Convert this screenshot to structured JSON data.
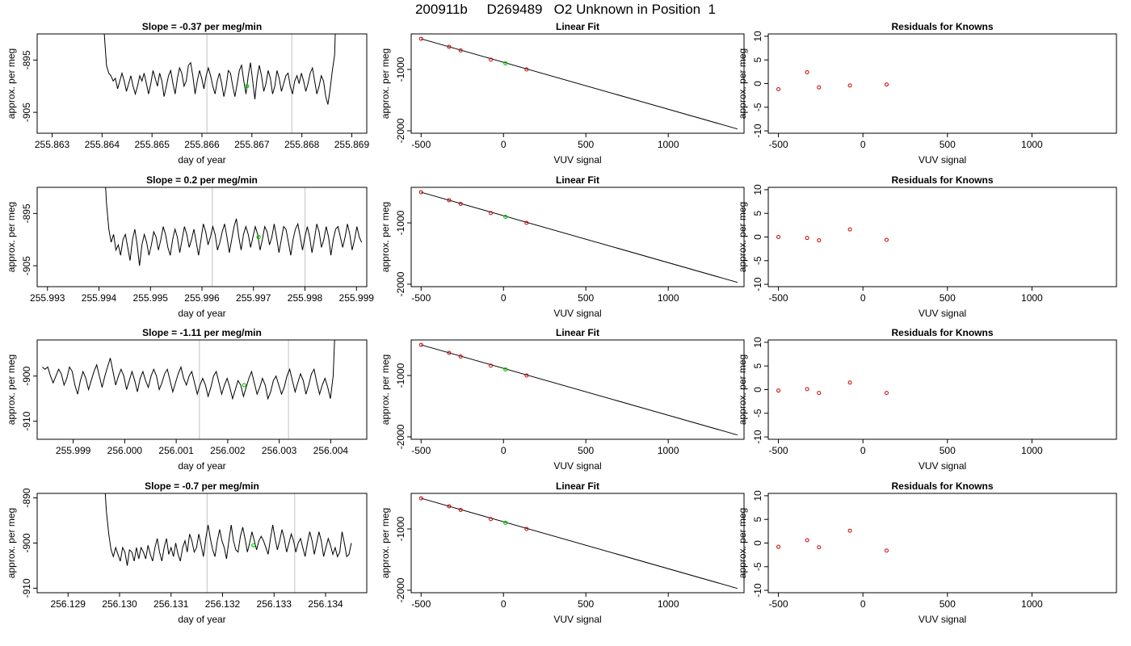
{
  "page": {
    "title": "200911b     D269489   O2 Unknown in Position  1"
  },
  "colors": {
    "line": "#000000",
    "vline": "#cccccc",
    "known_point": "#cc0000",
    "unknown_point": "#00cc00"
  },
  "chart_data": [
    {
      "type": "line",
      "panel": "time-series",
      "title": "Slope =  -0.37  per meg/min",
      "xlabel": "day of year",
      "ylabel": "approx. per meg",
      "xlim": [
        255.8627,
        255.8693
      ],
      "ylim": [
        -909,
        -890
      ],
      "xticks": [
        255.863,
        255.864,
        255.865,
        255.866,
        255.867,
        255.868,
        255.869
      ],
      "xtick_labels": [
        "255.863",
        "255.864",
        "255.865",
        "255.866",
        "255.867",
        "255.868",
        "255.869"
      ],
      "yticks": [
        -895,
        -905
      ],
      "ytick_labels": [
        "-895",
        "-905"
      ],
      "vlines": [
        255.8661,
        255.8678
      ],
      "x_start": 255.864,
      "x_end": 255.8687,
      "series_values": [
        -880,
        -890,
        -896,
        -897.5,
        -898,
        -899,
        -898.5,
        -900.5,
        -899,
        -897.5,
        -899,
        -901,
        -899.5,
        -898,
        -900,
        -901.5,
        -900,
        -898,
        -899,
        -897.5,
        -899.5,
        -901.5,
        -899.5,
        -897,
        -898.5,
        -900,
        -897.5,
        -899,
        -902,
        -900,
        -898,
        -897,
        -899.5,
        -901.5,
        -898.5,
        -896.5,
        -897.5,
        -900,
        -899,
        -896,
        -895.5,
        -898,
        -901.5,
        -899,
        -897,
        -898.5,
        -900.5,
        -898,
        -896.5,
        -898,
        -900,
        -901.5,
        -899,
        -897.5,
        -899.5,
        -902,
        -900,
        -897,
        -897.5,
        -900,
        -902,
        -899.5,
        -897,
        -896,
        -899,
        -901.5,
        -898,
        -895.5,
        -899,
        -902.5,
        -898.5,
        -896,
        -898,
        -901,
        -899.5,
        -897,
        -898.5,
        -901.5,
        -900,
        -897,
        -898.5,
        -901,
        -899.5,
        -898,
        -897.5,
        -900,
        -901.5,
        -899,
        -898,
        -899.5,
        -897.5,
        -899,
        -901,
        -899.5,
        -897.5,
        -896.5,
        -899,
        -901.5,
        -900,
        -898,
        -899,
        -902,
        -903.5,
        -900.5,
        -897,
        -894,
        -880
      ],
      "unknown_marker": {
        "x": 255.8669,
        "y": -900
      }
    },
    {
      "type": "scatter",
      "panel": "linear-fit",
      "title": "Linear Fit",
      "xlabel": "VUV signal",
      "ylabel": "approx. per meg",
      "xlim": [
        -560,
        1460
      ],
      "ylim": [
        -2040,
        -420
      ],
      "xticks": [
        -500,
        0,
        500,
        1000
      ],
      "xtick_labels": [
        "-500",
        "0",
        "500",
        "1000"
      ],
      "yticks": [
        -1000,
        -2000
      ],
      "ytick_labels": [
        "-1000",
        "-2000"
      ],
      "knowns": {
        "x": [
          -500,
          -330,
          -260,
          -77,
          140
        ],
        "y": [
          -500,
          -630,
          -690,
          -840,
          -1000
        ]
      },
      "unknown": {
        "x": 12,
        "y": -900
      },
      "fit_line": {
        "x": [
          -500,
          1420
        ],
        "y": [
          -500,
          -1970
        ]
      }
    },
    {
      "type": "scatter",
      "panel": "residuals",
      "title": "Residuals for Knowns",
      "xlabel": "VUV signal",
      "ylabel": "approx. per meg",
      "xlim": [
        -560,
        1500
      ],
      "ylim": [
        -10.5,
        10.5
      ],
      "xticks": [
        -500,
        0,
        500,
        1000
      ],
      "xtick_labels": [
        "-500",
        "0",
        "500",
        "1000"
      ],
      "yticks": [
        10,
        5,
        0,
        -5,
        -10
      ],
      "ytick_labels": [
        "10",
        "5",
        "0",
        "-5",
        "-10"
      ],
      "knowns": {
        "x": [
          -500,
          -330,
          -260,
          -77,
          140
        ],
        "y": [
          -1.2,
          2.4,
          -0.8,
          -0.4,
          -0.2
        ]
      }
    },
    {
      "type": "line",
      "panel": "time-series",
      "title": "Slope =  0.2  per meg/min",
      "xlabel": "day of year",
      "ylabel": "approx. per meg",
      "xlim": [
        255.9928,
        255.9992
      ],
      "ylim": [
        -909,
        -890
      ],
      "xticks": [
        255.993,
        255.994,
        255.995,
        255.996,
        255.997,
        255.998,
        255.999
      ],
      "xtick_labels": [
        "255.993",
        "255.994",
        "255.995",
        "255.996",
        "255.997",
        "255.998",
        "255.999"
      ],
      "yticks": [
        -895,
        -905
      ],
      "ytick_labels": [
        "-895",
        "-905"
      ],
      "vlines": [
        255.9962,
        255.998
      ],
      "x_start": 255.9941,
      "x_end": 255.9991,
      "series_values": [
        -885,
        -893,
        -898,
        -900.5,
        -899,
        -902,
        -901,
        -903,
        -900,
        -899,
        -901.5,
        -904,
        -900,
        -898,
        -901,
        -905,
        -901,
        -899,
        -900.5,
        -903,
        -901,
        -898.5,
        -899.5,
        -902,
        -900,
        -897.5,
        -899,
        -901.5,
        -903,
        -900,
        -898,
        -899.5,
        -902.5,
        -900,
        -897.5,
        -899,
        -901.5,
        -900,
        -898,
        -900.5,
        -903,
        -900,
        -897,
        -898.5,
        -901,
        -899.5,
        -897.5,
        -899,
        -902,
        -900.5,
        -898.5,
        -897,
        -899.5,
        -902.5,
        -900,
        -897.5,
        -896,
        -899.5,
        -902,
        -899,
        -897.5,
        -899,
        -901.5,
        -899.5,
        -897.5,
        -899,
        -902,
        -900,
        -897.5,
        -898.5,
        -901,
        -899.5,
        -897,
        -899.5,
        -902.5,
        -900,
        -897.5,
        -898,
        -900.5,
        -903,
        -900,
        -898,
        -897,
        -899.5,
        -902,
        -899.5,
        -897.5,
        -899.5,
        -902.5,
        -900,
        -897,
        -898.5,
        -901.5,
        -900,
        -897.5,
        -899.5,
        -903,
        -900,
        -898,
        -897.5,
        -899.5,
        -901.5,
        -899.5,
        -897,
        -899,
        -902,
        -900,
        -897.5,
        -899.5,
        -900.5
      ],
      "unknown_marker": {
        "x": 255.9971,
        "y": -899.5
      }
    },
    {
      "type": "scatter",
      "panel": "linear-fit",
      "title": "Linear Fit",
      "xlabel": "VUV signal",
      "ylabel": "approx. per meg",
      "xlim": [
        -560,
        1460
      ],
      "ylim": [
        -2040,
        -420
      ],
      "xticks": [
        -500,
        0,
        500,
        1000
      ],
      "xtick_labels": [
        "-500",
        "0",
        "500",
        "1000"
      ],
      "yticks": [
        -1000,
        -2000
      ],
      "ytick_labels": [
        "-1000",
        "-2000"
      ],
      "knowns": {
        "x": [
          -500,
          -330,
          -260,
          -77,
          140
        ],
        "y": [
          -500,
          -630,
          -690,
          -840,
          -1000
        ]
      },
      "unknown": {
        "x": 12,
        "y": -900
      },
      "fit_line": {
        "x": [
          -500,
          1420
        ],
        "y": [
          -500,
          -1970
        ]
      }
    },
    {
      "type": "scatter",
      "panel": "residuals",
      "title": "Residuals for Knowns",
      "xlabel": "VUV signal",
      "ylabel": "approx. per meg",
      "xlim": [
        -560,
        1500
      ],
      "ylim": [
        -10.5,
        10.5
      ],
      "xticks": [
        -500,
        0,
        500,
        1000
      ],
      "xtick_labels": [
        "-500",
        "0",
        "500",
        "1000"
      ],
      "yticks": [
        10,
        5,
        0,
        -5,
        -10
      ],
      "ytick_labels": [
        "10",
        "5",
        "0",
        "-5",
        "-10"
      ],
      "knowns": {
        "x": [
          -500,
          -330,
          -260,
          -77,
          140
        ],
        "y": [
          0,
          -0.2,
          -0.7,
          1.6,
          -0.6
        ]
      }
    },
    {
      "type": "line",
      "panel": "time-series",
      "title": "Slope =  -1.11  per meg/min",
      "xlabel": "day of year",
      "ylabel": "approx. per meg",
      "xlim": [
        255.9983,
        256.0047
      ],
      "ylim": [
        -914,
        -892
      ],
      "xticks": [
        255.999,
        256.0,
        256.001,
        256.002,
        256.003,
        256.004
      ],
      "xtick_labels": [
        "255.999",
        "256.000",
        "256.001",
        "256.002",
        "256.003",
        "256.004"
      ],
      "yticks": [
        -900,
        -910
      ],
      "ytick_labels": [
        "-900",
        "-910"
      ],
      "vlines": [
        256.00145,
        256.00318
      ],
      "x_start": 255.9984,
      "x_end": 256.0041,
      "series_values": [
        -898,
        -898.5,
        -898,
        -900,
        -901.5,
        -900,
        -898.5,
        -899.5,
        -902,
        -900.5,
        -898,
        -899,
        -902,
        -904,
        -901,
        -899,
        -900.5,
        -903,
        -901,
        -899,
        -897.5,
        -900,
        -902.5,
        -900,
        -898,
        -896,
        -899,
        -902,
        -900,
        -898.5,
        -900,
        -903,
        -901,
        -899,
        -901,
        -903.5,
        -900.5,
        -899,
        -901,
        -902.5,
        -900,
        -898.5,
        -900,
        -903,
        -901.5,
        -899.5,
        -898.5,
        -901,
        -903.5,
        -901.5,
        -899.5,
        -898,
        -900.5,
        -902,
        -900,
        -899,
        -901.5,
        -904,
        -902,
        -900.5,
        -902,
        -904.5,
        -902.5,
        -900,
        -899,
        -901.5,
        -904,
        -902,
        -900.5,
        -902.5,
        -905,
        -903,
        -901,
        -902,
        -904.5,
        -902.5,
        -900.5,
        -899,
        -901.5,
        -904,
        -902.5,
        -900.5,
        -902,
        -905,
        -903.5,
        -901,
        -900,
        -902,
        -904,
        -902.5,
        -900,
        -898.5,
        -901,
        -903.5,
        -901.5,
        -899.5,
        -901,
        -904,
        -902,
        -899.5,
        -898.5,
        -901.5,
        -904,
        -902,
        -900.5,
        -902.5,
        -905,
        -900,
        -885
      ],
      "unknown_marker": {
        "x": 256.00232,
        "y": -902
      }
    },
    {
      "type": "scatter",
      "panel": "linear-fit",
      "title": "Linear Fit",
      "xlabel": "VUV signal",
      "ylabel": "approx. per meg",
      "xlim": [
        -560,
        1460
      ],
      "ylim": [
        -2040,
        -420
      ],
      "xticks": [
        -500,
        0,
        500,
        1000
      ],
      "xtick_labels": [
        "-500",
        "0",
        "500",
        "1000"
      ],
      "yticks": [
        -1000,
        -2000
      ],
      "ytick_labels": [
        "-1000",
        "-2000"
      ],
      "knowns": {
        "x": [
          -500,
          -330,
          -260,
          -77,
          140
        ],
        "y": [
          -500,
          -630,
          -690,
          -840,
          -1000
        ]
      },
      "unknown": {
        "x": 12,
        "y": -900
      },
      "fit_line": {
        "x": [
          -500,
          1420
        ],
        "y": [
          -500,
          -1970
        ]
      }
    },
    {
      "type": "scatter",
      "panel": "residuals",
      "title": "Residuals for Knowns",
      "xlabel": "VUV signal",
      "ylabel": "approx. per meg",
      "xlim": [
        -560,
        1500
      ],
      "ylim": [
        -10.5,
        10.5
      ],
      "xticks": [
        -500,
        0,
        500,
        1000
      ],
      "xtick_labels": [
        "-500",
        "0",
        "500",
        "1000"
      ],
      "yticks": [
        10,
        5,
        0,
        -5,
        -10
      ],
      "ytick_labels": [
        "10",
        "5",
        "0",
        "-5",
        "-10"
      ],
      "knowns": {
        "x": [
          -500,
          -330,
          -260,
          -77,
          140
        ],
        "y": [
          -0.2,
          0.1,
          -0.7,
          1.5,
          -0.7
        ]
      }
    },
    {
      "type": "line",
      "panel": "time-series",
      "title": "Slope =  -0.7  per meg/min",
      "xlabel": "day of year",
      "ylabel": "approx. per meg",
      "xlim": [
        256.1284,
        256.1348
      ],
      "ylim": [
        -911,
        -889
      ],
      "xticks": [
        256.129,
        256.13,
        256.131,
        256.132,
        256.133,
        256.134
      ],
      "xtick_labels": [
        "256.129",
        "256.130",
        "256.131",
        "256.132",
        "256.133",
        "256.134"
      ],
      "yticks": [
        -890,
        -900,
        -910
      ],
      "ytick_labels": [
        "-890",
        "-900",
        "-910"
      ],
      "vlines": [
        256.1317,
        256.1334
      ],
      "x_start": 256.1297,
      "x_end": 256.1345,
      "series_values": [
        -885,
        -893,
        -898,
        -901.5,
        -903,
        -901,
        -902.5,
        -904,
        -901,
        -902,
        -905,
        -901.5,
        -902,
        -904,
        -901,
        -903.5,
        -901,
        -902,
        -903.5,
        -900.5,
        -902.5,
        -904,
        -901,
        -899,
        -902,
        -904,
        -901,
        -899,
        -902.5,
        -901,
        -903,
        -900,
        -902.5,
        -904,
        -901,
        -899.5,
        -902,
        -898,
        -899.5,
        -902,
        -901,
        -898,
        -900.5,
        -903,
        -899,
        -896,
        -899,
        -901.5,
        -903,
        -899.5,
        -897,
        -899.5,
        -901,
        -903.5,
        -899.5,
        -896,
        -899.5,
        -901.5,
        -902,
        -898.5,
        -896.5,
        -899,
        -902,
        -900,
        -897.5,
        -899.5,
        -901.5,
        -899.5,
        -898.5,
        -899.5,
        -901,
        -902.5,
        -899,
        -896,
        -899,
        -901.5,
        -899.5,
        -897,
        -899,
        -902,
        -900,
        -898,
        -899.5,
        -902,
        -900,
        -899,
        -901,
        -903,
        -900,
        -897.5,
        -899.5,
        -902.5,
        -900,
        -897.5,
        -899.5,
        -903,
        -901,
        -899,
        -900.5,
        -902.5,
        -901,
        -903,
        -902,
        -897.5,
        -900,
        -903,
        -902.5,
        -900
      ],
      "unknown_marker": {
        "x": 256.1326,
        "y": -900.5
      }
    },
    {
      "type": "scatter",
      "panel": "linear-fit",
      "title": "Linear Fit",
      "xlabel": "VUV signal",
      "ylabel": "approx. per meg",
      "xlim": [
        -560,
        1460
      ],
      "ylim": [
        -2040,
        -420
      ],
      "xticks": [
        -500,
        0,
        500,
        1000
      ],
      "xtick_labels": [
        "-500",
        "0",
        "500",
        "1000"
      ],
      "yticks": [
        -1000,
        -2000
      ],
      "ytick_labels": [
        "-1000",
        "-2000"
      ],
      "knowns": {
        "x": [
          -500,
          -330,
          -260,
          -77,
          140
        ],
        "y": [
          -500,
          -630,
          -690,
          -840,
          -1000
        ]
      },
      "unknown": {
        "x": 12,
        "y": -900
      },
      "fit_line": {
        "x": [
          -500,
          1420
        ],
        "y": [
          -500,
          -1970
        ]
      }
    },
    {
      "type": "scatter",
      "panel": "residuals",
      "title": "Residuals for Knowns",
      "xlabel": "VUV signal",
      "ylabel": "approx. per meg",
      "xlim": [
        -560,
        1500
      ],
      "ylim": [
        -10.5,
        10.5
      ],
      "xticks": [
        -500,
        0,
        500,
        1000
      ],
      "xtick_labels": [
        "-500",
        "0",
        "500",
        "1000"
      ],
      "yticks": [
        10,
        5,
        0,
        -5,
        -10
      ],
      "ytick_labels": [
        "10",
        "5",
        "0",
        "-5",
        "-10"
      ],
      "knowns": {
        "x": [
          -500,
          -330,
          -260,
          -77,
          140
        ],
        "y": [
          -0.8,
          0.6,
          -0.9,
          2.6,
          -1.6
        ]
      }
    }
  ]
}
